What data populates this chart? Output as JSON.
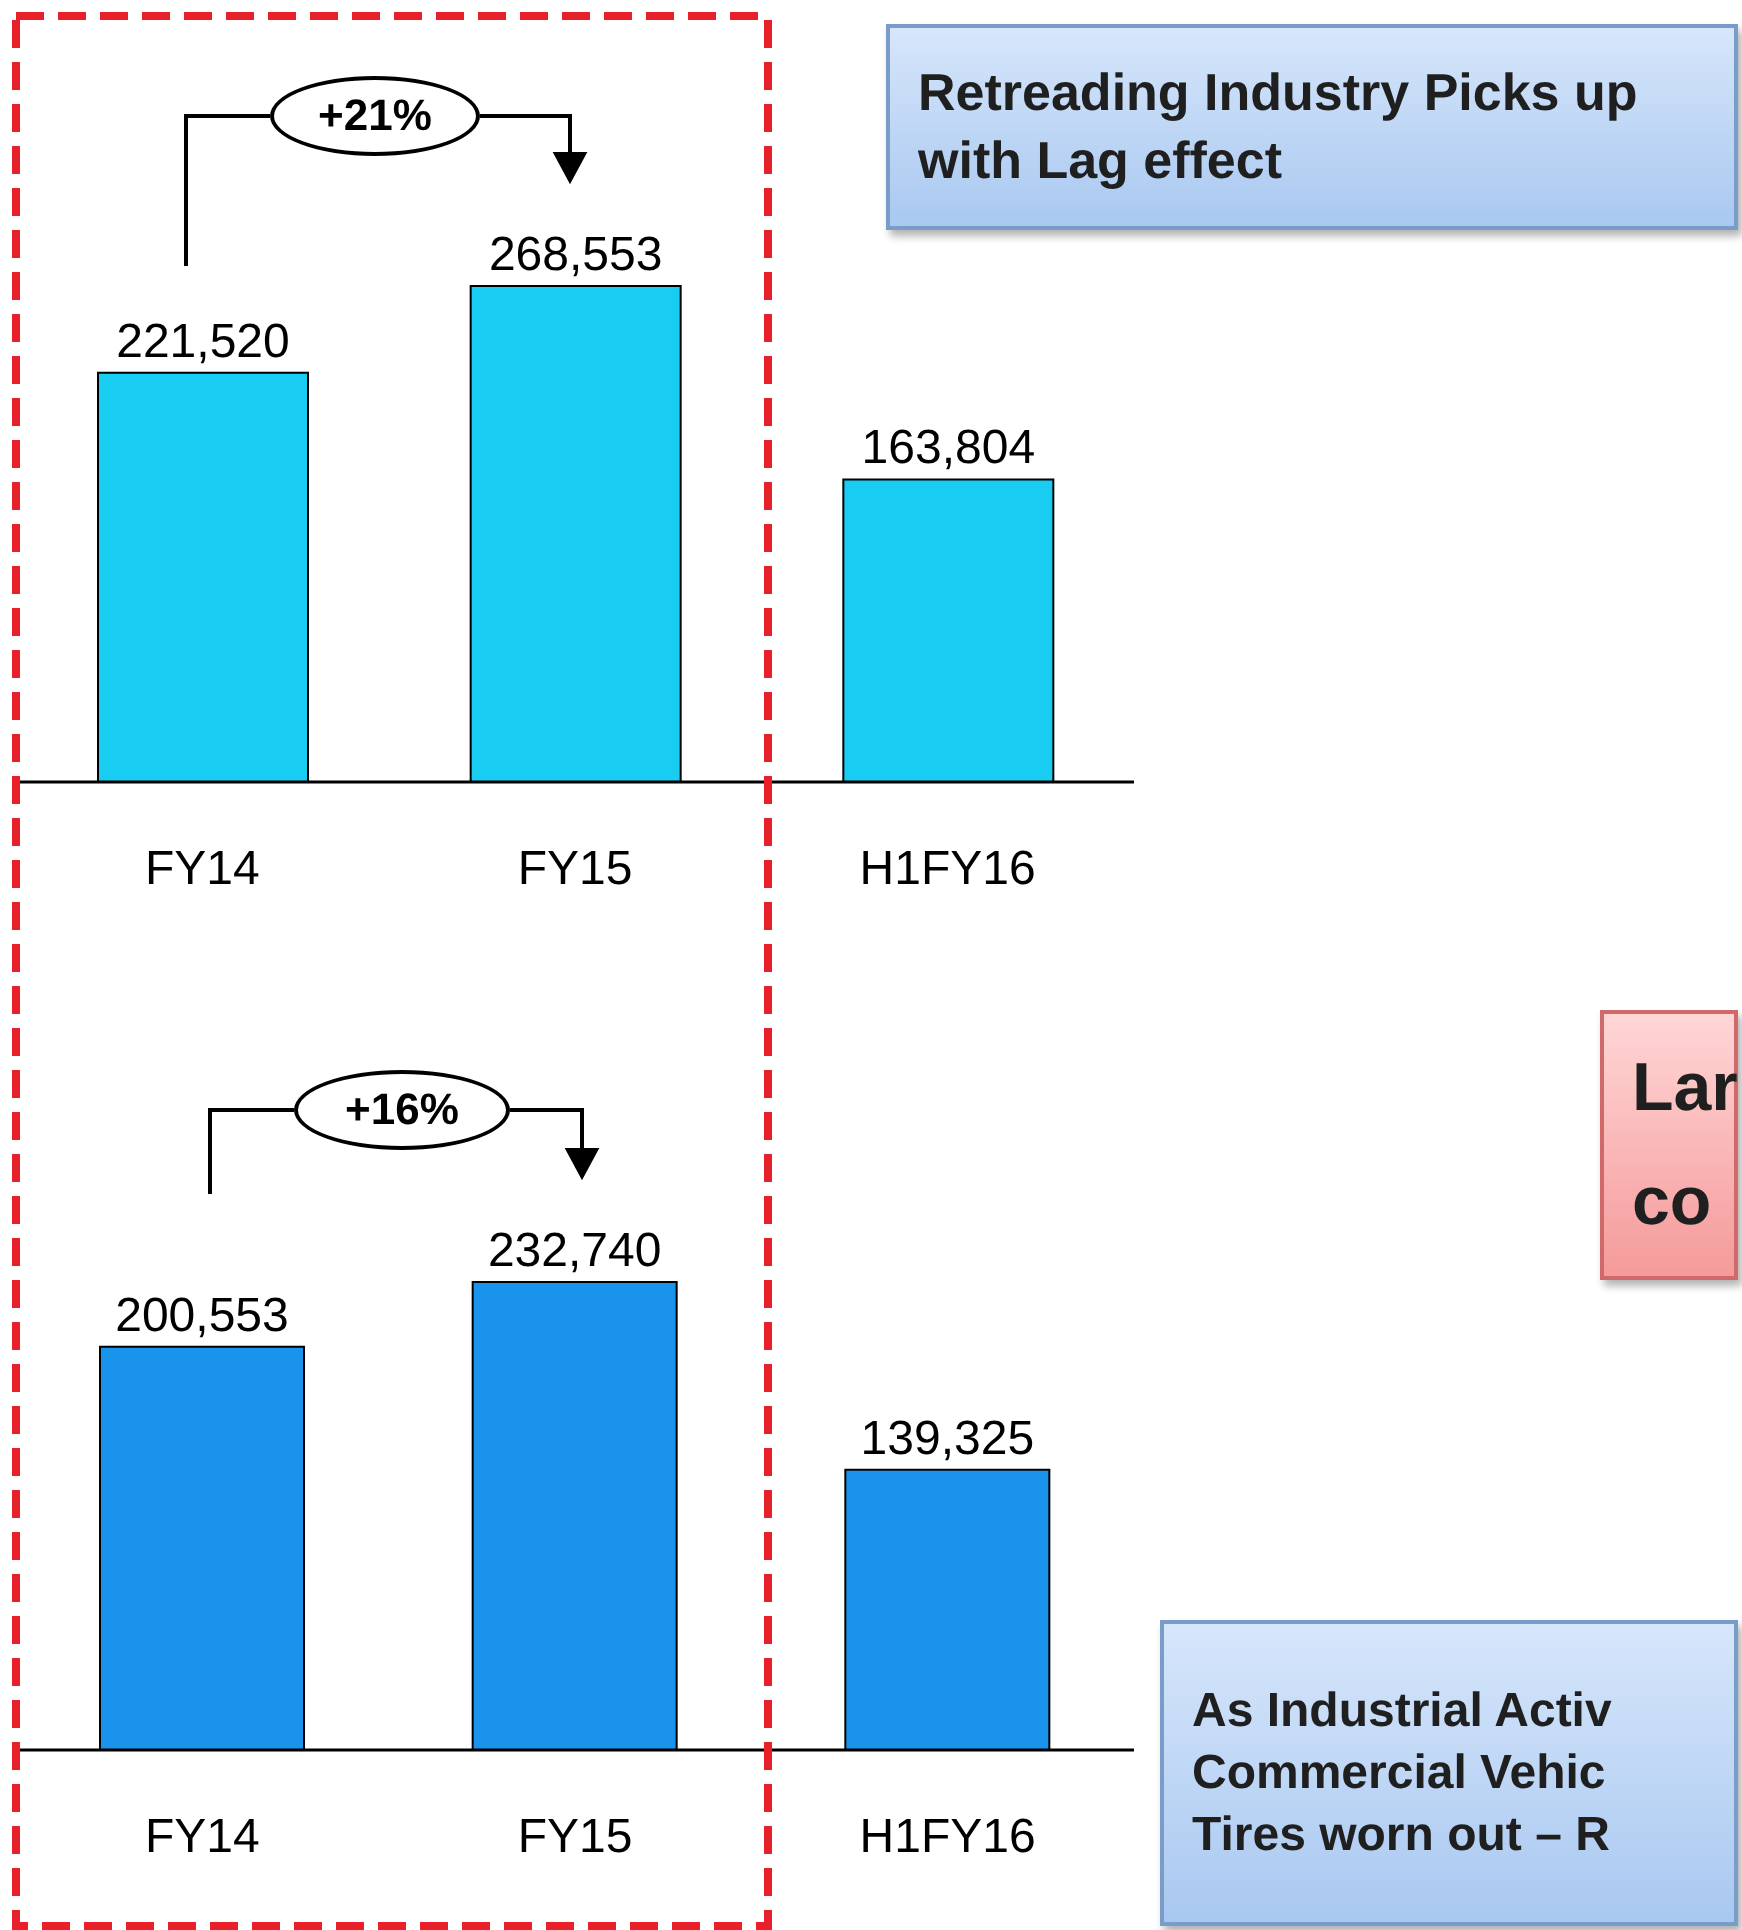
{
  "chart_data": [
    {
      "type": "bar",
      "categories": [
        "FY14",
        "FY15",
        "H1FY16"
      ],
      "values": [
        221520,
        268553,
        163804
      ],
      "value_labels": [
        "221,520",
        "268,553",
        "163,804"
      ],
      "color": "#19cdf2",
      "tick_labels": "x",
      "annotations": [
        "+21%",
        "Retreading Industry Picks up with Lag effect"
      ]
    },
    {
      "type": "bar",
      "categories": [
        "FY14",
        "FY15",
        "H1FY16"
      ],
      "values": [
        200553,
        232740,
        139325
      ],
      "value_labels": [
        "200,553",
        "232,740",
        "139,325"
      ],
      "color": "#1a93ec",
      "tick_labels": "x",
      "annotations": [
        "+16%",
        "Lar\nco",
        "As Industrial Activ\nCommercial Vehic\nTires worn out – R"
      ]
    }
  ]
}
